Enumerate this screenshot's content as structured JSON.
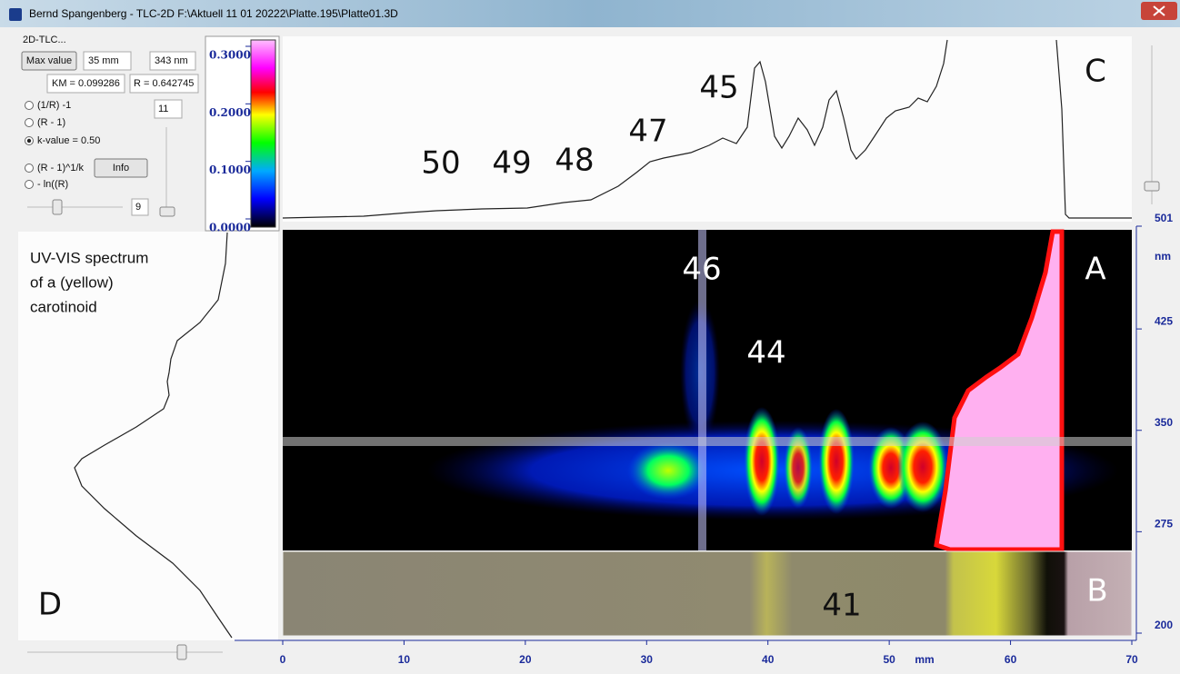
{
  "window": {
    "title": "Bernd Spangenberg - TLC-2D F:\\Aktuell 11 01 20222\\Platte.195\\Platte01.3D"
  },
  "controls": {
    "group_label": "2D-TLC...",
    "max_value_button": "Max value",
    "position": "35 mm",
    "wavelength": "343 nm",
    "km": "KM = 0.099286",
    "r": "R = 0.642745",
    "options": [
      "(1/R) -1",
      "(R - 1)",
      "k-value = 0.50",
      "(R - 1)^1/k",
      "- ln((R)"
    ],
    "selected_option": 2,
    "info_button": "Info",
    "field_top": "11",
    "field_bottom": "9"
  },
  "color_scale": {
    "ticks": [
      {
        "value": 0.3,
        "label": "0.3000"
      },
      {
        "value": 0.2,
        "label": "0.2000"
      },
      {
        "value": 0.1,
        "label": "0.1000"
      },
      {
        "value": 0,
        "label": "0.0000"
      }
    ]
  },
  "x_axis": {
    "ticks": [
      0,
      10,
      20,
      30,
      40,
      50,
      60,
      70
    ],
    "unit": "mm"
  },
  "y_axis": {
    "ticks": [
      200,
      275,
      350,
      425,
      501
    ],
    "unit": "nm"
  },
  "annotations": {
    "panel_c": {
      "label": "C",
      "peaks": [
        "50",
        "49",
        "48",
        "47",
        "45"
      ]
    },
    "panel_a": {
      "label": "A",
      "peaks": [
        "46",
        "44"
      ]
    },
    "panel_b": {
      "label": "B",
      "peaks": [
        "41"
      ]
    },
    "panel_d": {
      "label": "D",
      "caption": [
        "UV-VIS spectrum",
        "of a (yellow)",
        "carotinoid"
      ]
    }
  }
}
